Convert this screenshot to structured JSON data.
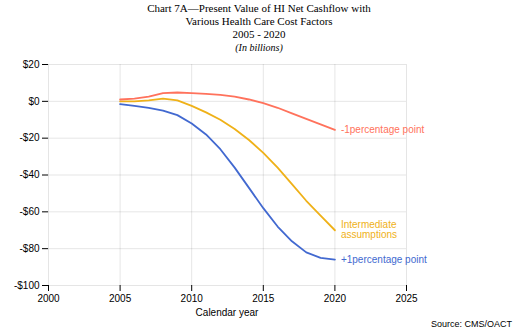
{
  "chart_data": {
    "type": "line",
    "title": "Chart 7A—Present Value of HI Net Cashflow with\nVarious Health Care Cost Factors\n2005 - 2020",
    "subtitle": "(In billions)",
    "xlabel": "Calendar year",
    "source": "Source: CMS/OACT",
    "x": [
      2005,
      2006,
      2007,
      2008,
      2009,
      2010,
      2011,
      2012,
      2013,
      2014,
      2015,
      2016,
      2017,
      2018,
      2019,
      2020
    ],
    "series": [
      {
        "name": "+1percentage point",
        "values": [
          -1.5,
          -2.5,
          -3.5,
          -5.0,
          -7.5,
          -12.0,
          -18.0,
          -26.0,
          -36.0,
          -47.0,
          -58.0,
          -68.0,
          -76.0,
          -82.0,
          -85.0,
          -86.0
        ]
      },
      {
        "name": "Intermediate\nassumptions",
        "values": [
          0.0,
          0.0,
          0.5,
          1.5,
          0.5,
          -2.5,
          -6.0,
          -10.0,
          -15.0,
          -21.0,
          -28.0,
          -36.0,
          -45.0,
          -54.0,
          -62.0,
          -70.0
        ]
      },
      {
        "name": "-1percentage point",
        "values": [
          1.0,
          1.5,
          2.5,
          4.5,
          4.8,
          4.5,
          4.0,
          3.5,
          2.5,
          1.0,
          -1.0,
          -3.5,
          -6.5,
          -9.5,
          -12.5,
          -15.5
        ]
      }
    ],
    "xlim": [
      2000,
      2025
    ],
    "xticks": [
      2000,
      2005,
      2010,
      2015,
      2020,
      2025
    ],
    "ylim": [
      -100,
      20
    ],
    "yticks": [
      {
        "value": 20,
        "label": "$20"
      },
      {
        "value": 0,
        "label": "$0"
      },
      {
        "value": -20,
        "label": "-$20"
      },
      {
        "value": -40,
        "label": "-$40"
      },
      {
        "value": -60,
        "label": "-$60"
      },
      {
        "value": -80,
        "label": "-$80"
      },
      {
        "value": -100,
        "label": "-$100"
      }
    ],
    "grid": true
  }
}
